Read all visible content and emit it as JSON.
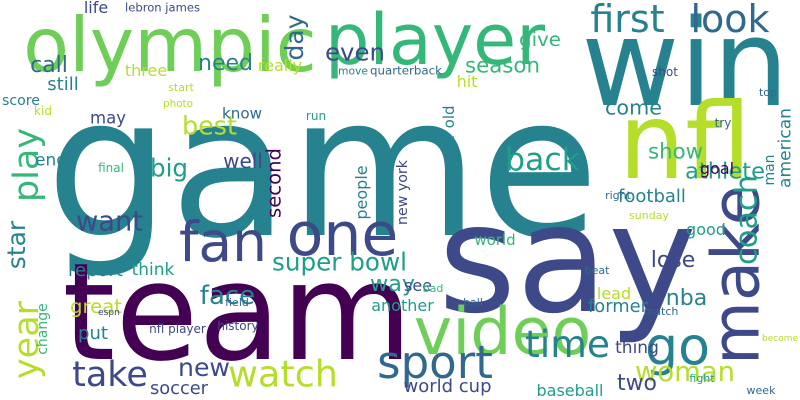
{
  "palette": {
    "dark_purple": "#440154",
    "indigo": "#3e4989",
    "blue": "#31688e",
    "teal": "#26828e",
    "green_teal": "#1f9e89",
    "green": "#35b779",
    "light_green": "#6ece58",
    "lime": "#b5de2b",
    "yellow": "#d8e219"
  },
  "words": [
    {
      "text": "game"
    },
    {
      "text": "say"
    },
    {
      "text": "team"
    },
    {
      "text": "win"
    },
    {
      "text": "olympic"
    },
    {
      "text": "player"
    },
    {
      "text": "nfl"
    },
    {
      "text": "video"
    },
    {
      "text": "one"
    },
    {
      "text": "fan"
    },
    {
      "text": "make"
    },
    {
      "text": "go"
    },
    {
      "text": "sport"
    },
    {
      "text": "watch"
    },
    {
      "text": "take"
    },
    {
      "text": "new"
    },
    {
      "text": "time"
    },
    {
      "text": "woman"
    },
    {
      "text": "coach"
    },
    {
      "text": "back"
    },
    {
      "text": "first"
    },
    {
      "text": "look"
    },
    {
      "text": "year"
    },
    {
      "text": "play"
    },
    {
      "text": "season"
    },
    {
      "text": "super bowl"
    },
    {
      "text": "athlete"
    },
    {
      "text": "want"
    },
    {
      "text": "show"
    },
    {
      "text": "face"
    },
    {
      "text": "best"
    },
    {
      "text": "big"
    },
    {
      "text": "even"
    },
    {
      "text": "second"
    },
    {
      "text": "day"
    },
    {
      "text": "call"
    },
    {
      "text": "need"
    },
    {
      "text": "star"
    },
    {
      "text": "give"
    },
    {
      "text": "come"
    },
    {
      "text": "way"
    },
    {
      "text": "nba"
    },
    {
      "text": "lose"
    },
    {
      "text": "well"
    },
    {
      "text": "two"
    },
    {
      "text": "world cup"
    },
    {
      "text": "baseball"
    },
    {
      "text": "football"
    },
    {
      "text": "american"
    },
    {
      "text": "three"
    },
    {
      "text": "still"
    },
    {
      "text": "score"
    },
    {
      "text": "end"
    },
    {
      "text": "may"
    },
    {
      "text": "life"
    },
    {
      "text": "lebron james"
    },
    {
      "text": "really"
    },
    {
      "text": "see"
    },
    {
      "text": "quarterback"
    },
    {
      "text": "move"
    },
    {
      "text": "hit"
    },
    {
      "text": "year old"
    },
    {
      "text": "know"
    },
    {
      "text": "photo"
    },
    {
      "text": "run"
    },
    {
      "text": "start"
    },
    {
      "text": "kid"
    },
    {
      "text": "final"
    },
    {
      "text": "people"
    },
    {
      "text": "new york"
    },
    {
      "text": "report"
    },
    {
      "text": "think"
    },
    {
      "text": "great"
    },
    {
      "text": "put"
    },
    {
      "text": "change"
    },
    {
      "text": "espn"
    },
    {
      "text": "nfl player"
    },
    {
      "text": "soccer"
    },
    {
      "text": "history"
    },
    {
      "text": "another"
    },
    {
      "text": "former"
    },
    {
      "text": "lead"
    },
    {
      "text": "world"
    },
    {
      "text": "good"
    },
    {
      "text": "thing"
    },
    {
      "text": "man"
    },
    {
      "text": "goal"
    },
    {
      "text": "shot"
    },
    {
      "text": "top"
    },
    {
      "text": "try"
    },
    {
      "text": "right"
    },
    {
      "text": "sunday"
    },
    {
      "text": "beat"
    },
    {
      "text": "field"
    },
    {
      "text": "bad"
    },
    {
      "text": "ball"
    },
    {
      "text": "match"
    },
    {
      "text": "become"
    },
    {
      "text": "fight"
    },
    {
      "text": "week"
    }
  ]
}
